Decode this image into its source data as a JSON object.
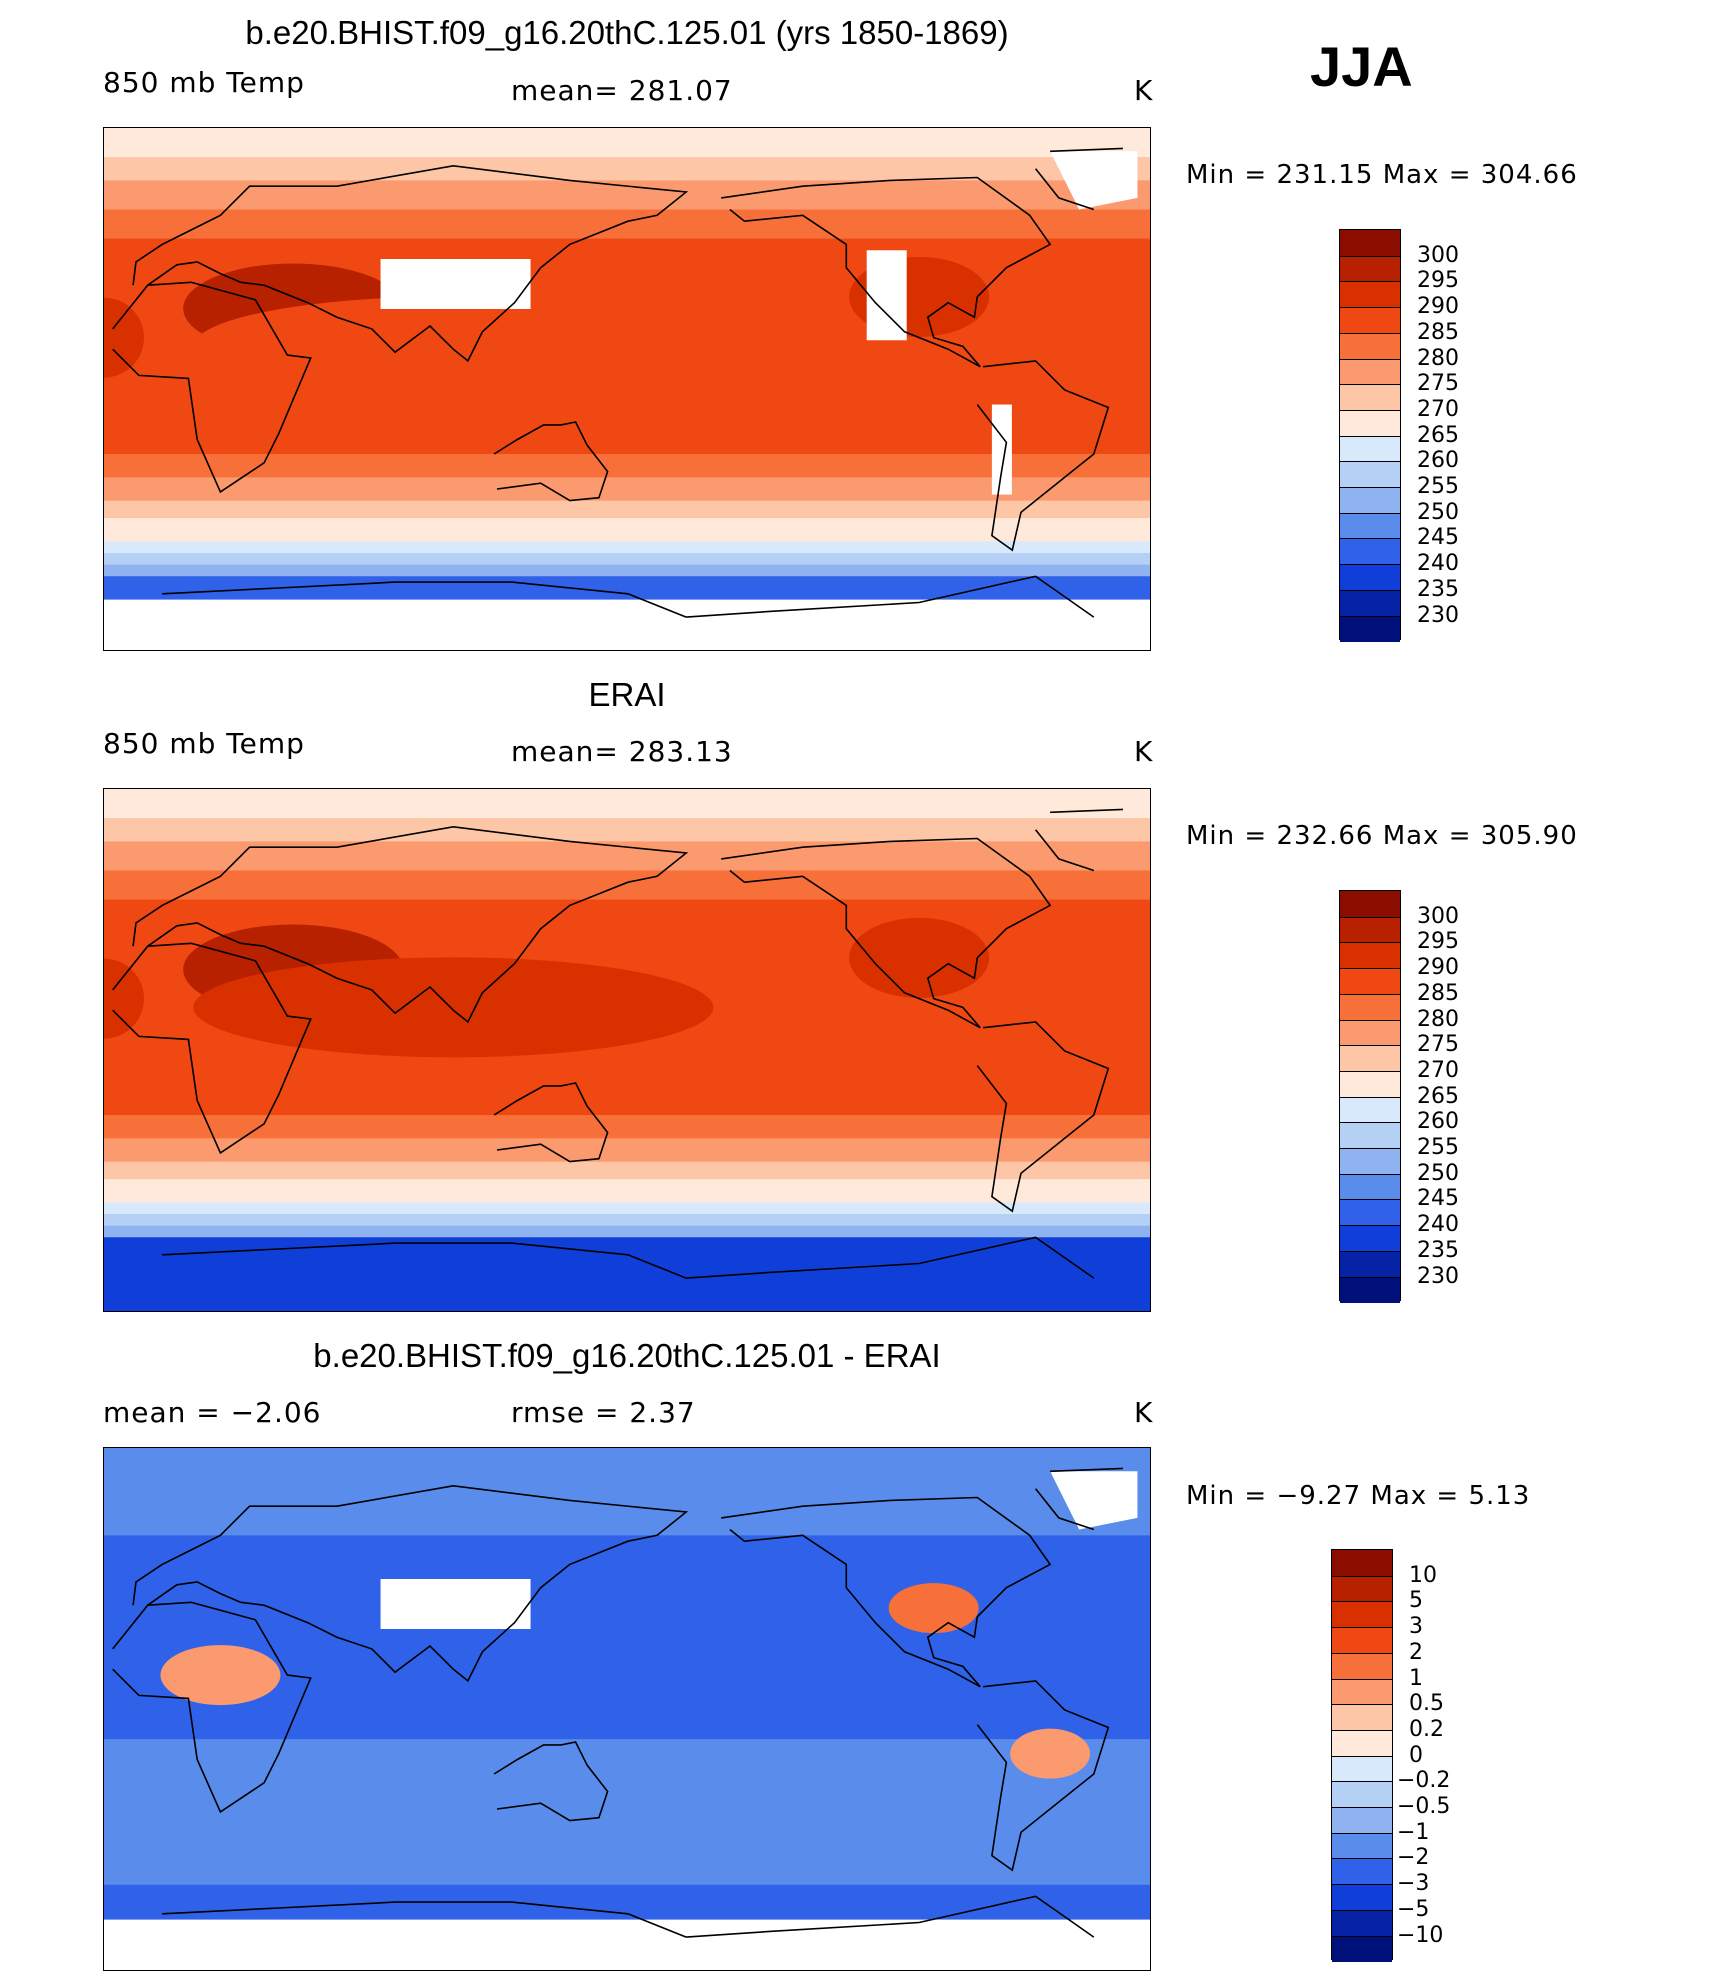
{
  "season": "JJA",
  "panels": [
    {
      "title": "b.e20.BHIST.f09_g16.20thC.125.01 (yrs 1850-1869)",
      "left_label": "850 mb Temp",
      "center_label": "mean= 281.07",
      "units": "K",
      "minmax": "Min = 231.15 Max = 304.66",
      "kind": "abs",
      "colorbar": {
        "labels": [
          "300",
          "295",
          "290",
          "285",
          "280",
          "275",
          "270",
          "265",
          "260",
          "255",
          "250",
          "245",
          "240",
          "235",
          "230"
        ],
        "colors": [
          "#8b0d00",
          "#b72100",
          "#d93000",
          "#ef4812",
          "#f7703a",
          "#fb9a6e",
          "#fdc6a6",
          "#fee9da",
          "#d7e9fb",
          "#b5d0f5",
          "#8eb3f0",
          "#5a8cec",
          "#2f62e8",
          "#0f3fd8",
          "#0622a5",
          "#00107a"
        ]
      }
    },
    {
      "title": "ERAI",
      "left_label": "850 mb Temp",
      "center_label": "mean= 283.13",
      "units": "K",
      "minmax": "Min = 232.66 Max = 305.90",
      "kind": "abs",
      "colorbar": {
        "labels": [
          "300",
          "295",
          "290",
          "285",
          "280",
          "275",
          "270",
          "265",
          "260",
          "255",
          "250",
          "245",
          "240",
          "235",
          "230"
        ],
        "colors": [
          "#8b0d00",
          "#b72100",
          "#d93000",
          "#ef4812",
          "#f7703a",
          "#fb9a6e",
          "#fdc6a6",
          "#fee9da",
          "#d7e9fb",
          "#b5d0f5",
          "#8eb3f0",
          "#5a8cec",
          "#2f62e8",
          "#0f3fd8",
          "#0622a5",
          "#00107a"
        ]
      }
    },
    {
      "title": "b.e20.BHIST.f09_g16.20thC.125.01 - ERAI",
      "left_label": "mean =   −2.06",
      "center_label": "rmse =    2.37",
      "units": "K",
      "minmax": "Min =   −9.27 Max =    5.13",
      "kind": "diff",
      "colorbar": {
        "labels": [
          "10",
          "5",
          "3",
          "2",
          "1",
          "0.5",
          "0.2",
          "0",
          "−0.2",
          "−0.5",
          "−1",
          "−2",
          "−3",
          "−5",
          "−10"
        ],
        "colors": [
          "#8b0d00",
          "#b72100",
          "#d93000",
          "#ef4812",
          "#f7703a",
          "#fb9a6e",
          "#fdc6a6",
          "#fee9da",
          "#d7e9fb",
          "#b5d0f5",
          "#8eb3f0",
          "#5a8cec",
          "#2f62e8",
          "#0f3fd8",
          "#0622a5",
          "#00107a"
        ]
      }
    }
  ]
}
